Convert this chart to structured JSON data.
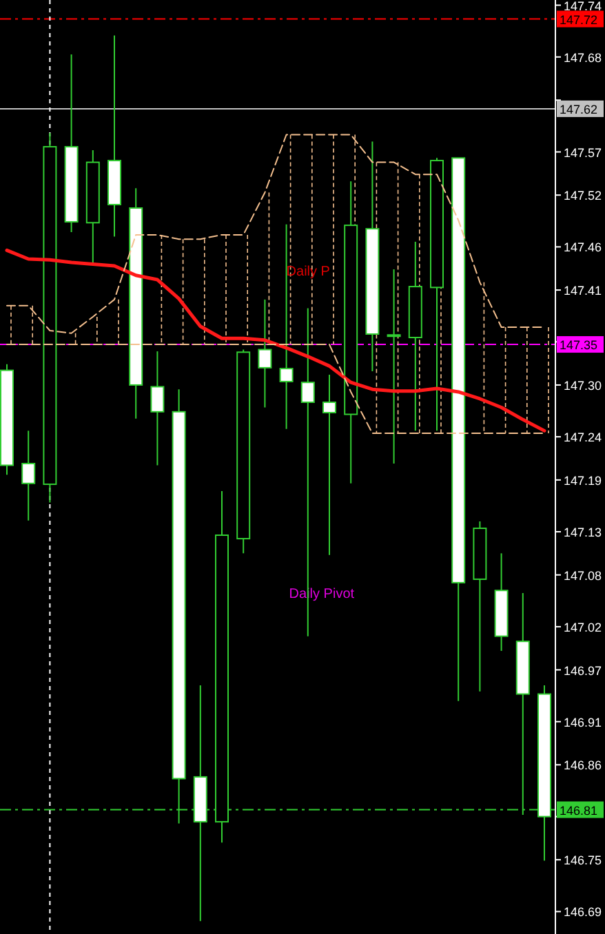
{
  "chart_data": {
    "type": "candlestick",
    "categories": [
      null,
      null,
      null,
      null,
      null,
      null,
      null,
      null,
      null,
      null,
      null,
      null,
      null,
      null,
      null,
      null,
      null,
      null,
      null,
      null,
      null,
      null,
      null,
      null,
      null,
      null
    ],
    "ohlc": [
      [
        147.317,
        147.324,
        147.196,
        147.207
      ],
      [
        147.209,
        147.247,
        147.143,
        147.186
      ],
      [
        147.185,
        147.592,
        147.164,
        147.576
      ],
      [
        147.576,
        147.683,
        147.477,
        147.489
      ],
      [
        147.488,
        147.572,
        147.438,
        147.558
      ],
      [
        147.56,
        147.705,
        147.472,
        147.509
      ],
      [
        147.505,
        147.528,
        147.261,
        147.3
      ],
      [
        147.298,
        147.339,
        147.207,
        147.269
      ],
      [
        147.269,
        147.295,
        146.792,
        146.844
      ],
      [
        146.846,
        146.952,
        146.679,
        146.794
      ],
      [
        146.794,
        147.177,
        146.77,
        147.126
      ],
      [
        147.122,
        147.341,
        147.105,
        147.338
      ],
      [
        147.341,
        147.399,
        147.274,
        147.32
      ],
      [
        147.319,
        147.486,
        147.249,
        147.304
      ],
      [
        147.303,
        147.389,
        147.009,
        147.28
      ],
      [
        147.28,
        147.312,
        147.103,
        147.268
      ],
      [
        147.266,
        147.536,
        147.186,
        147.485
      ],
      [
        147.481,
        147.582,
        147.316,
        147.359
      ],
      [
        147.358,
        147.434,
        147.209,
        147.357
      ],
      [
        147.355,
        147.466,
        147.247,
        147.414
      ],
      [
        147.413,
        147.563,
        147.247,
        147.56
      ],
      [
        147.563,
        147.563,
        146.934,
        147.071
      ],
      [
        147.075,
        147.142,
        146.945,
        147.134
      ],
      [
        147.062,
        147.105,
        146.992,
        147.009
      ],
      [
        147.003,
        147.059,
        146.802,
        146.942
      ],
      [
        146.942,
        146.952,
        146.749,
        146.8
      ]
    ],
    "series": [
      {
        "type": "line",
        "color": "#ff1a1a",
        "values": [
          147.456,
          147.446,
          147.445,
          147.442,
          147.44,
          147.438,
          147.427,
          147.422,
          147.4,
          147.368,
          147.354,
          147.354,
          147.352,
          147.343,
          147.333,
          147.322,
          147.303,
          147.295,
          147.293,
          147.293,
          147.296,
          147.292,
          147.284,
          147.274,
          147.26,
          147.247
        ]
      },
      {
        "type": "line",
        "color": "#f5c08f",
        "line_style": "dashed",
        "values": [
          147.392,
          147.392,
          147.363,
          147.36,
          147.379,
          147.399,
          147.474,
          147.474,
          147.469,
          147.469,
          147.474,
          147.474,
          147.523,
          147.59,
          147.59,
          147.59,
          147.59,
          147.558,
          147.558,
          147.544,
          147.544,
          147.491,
          147.419,
          147.367,
          147.367,
          147.367
        ]
      },
      {
        "type": "line",
        "color": "#f5c08f",
        "line_style": "dashed",
        "values": [
          147.347,
          147.347,
          147.347,
          147.347,
          147.347,
          147.347,
          147.347,
          147.347,
          147.347,
          147.347,
          147.347,
          147.347,
          147.347,
          147.347,
          147.347,
          147.347,
          147.292,
          147.244,
          147.244,
          147.244,
          147.244,
          147.244,
          147.244,
          147.244,
          147.244,
          147.244
        ]
      }
    ],
    "ylim": [
      146.664,
      147.746
    ],
    "yticks": [
      147.74,
      147.68,
      {
        "value": 147.63,
        "label": null
      },
      147.57,
      147.52,
      147.46,
      147.41,
      {
        "value": 147.35,
        "label": null
      },
      {
        "value": 147.3,
        "label": "147.30"
      },
      147.24,
      147.19,
      147.13,
      147.08,
      147.02,
      146.97,
      146.91,
      146.86,
      {
        "value": 146.8,
        "label": null
      },
      146.75,
      146.69
    ],
    "ref_lines": [
      {
        "axis": "y",
        "value": 147.724,
        "label": "147.72",
        "color": "#ff0000",
        "line_style": "dashed"
      },
      {
        "axis": "y",
        "value": 147.62,
        "label": "147.62",
        "color": "#c0c0c0",
        "line_style": "solid"
      },
      {
        "axis": "y",
        "value": 147.347,
        "label": "147.35",
        "color": "#ff00ff",
        "line_style": "dashed"
      },
      {
        "axis": "y",
        "value": 146.808,
        "label": "146.81",
        "color": "#32cd32",
        "line_style": "dashed"
      }
    ],
    "annotations": [
      "Daily P",
      "Daily Pivot"
    ]
  }
}
